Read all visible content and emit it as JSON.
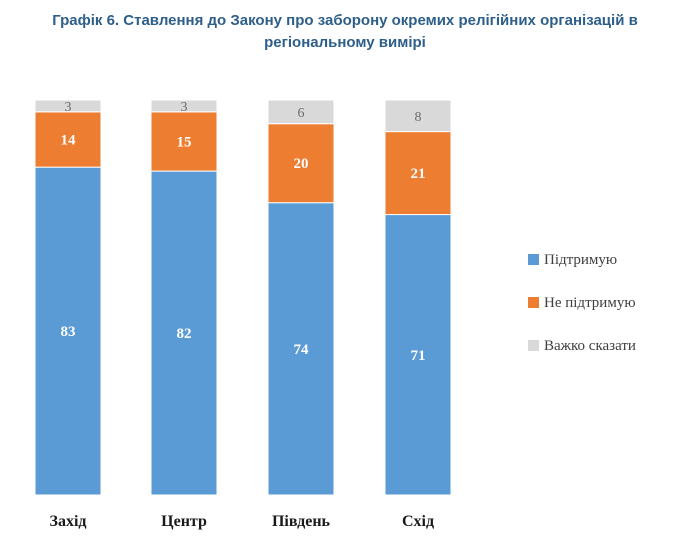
{
  "chart_data": {
    "type": "bar",
    "stacked": true,
    "title": "Графік 6. Ставлення до Закону про заборону окремих релігійних організацій в регіональному вимірі",
    "categories": [
      "Захід",
      "Центр",
      "Південь",
      "Схід"
    ],
    "series": [
      {
        "name": "Підтримую",
        "values": [
          83,
          82,
          74,
          71
        ],
        "color": "#5b9bd5"
      },
      {
        "name": "Не підтримую",
        "values": [
          14,
          15,
          20,
          21
        ],
        "color": "#ed7d31"
      },
      {
        "name": "Важко сказати",
        "values": [
          3,
          3,
          6,
          8
        ],
        "color": "#d9d9d9"
      }
    ],
    "ylim": [
      0,
      100
    ],
    "legend_position": "right"
  }
}
